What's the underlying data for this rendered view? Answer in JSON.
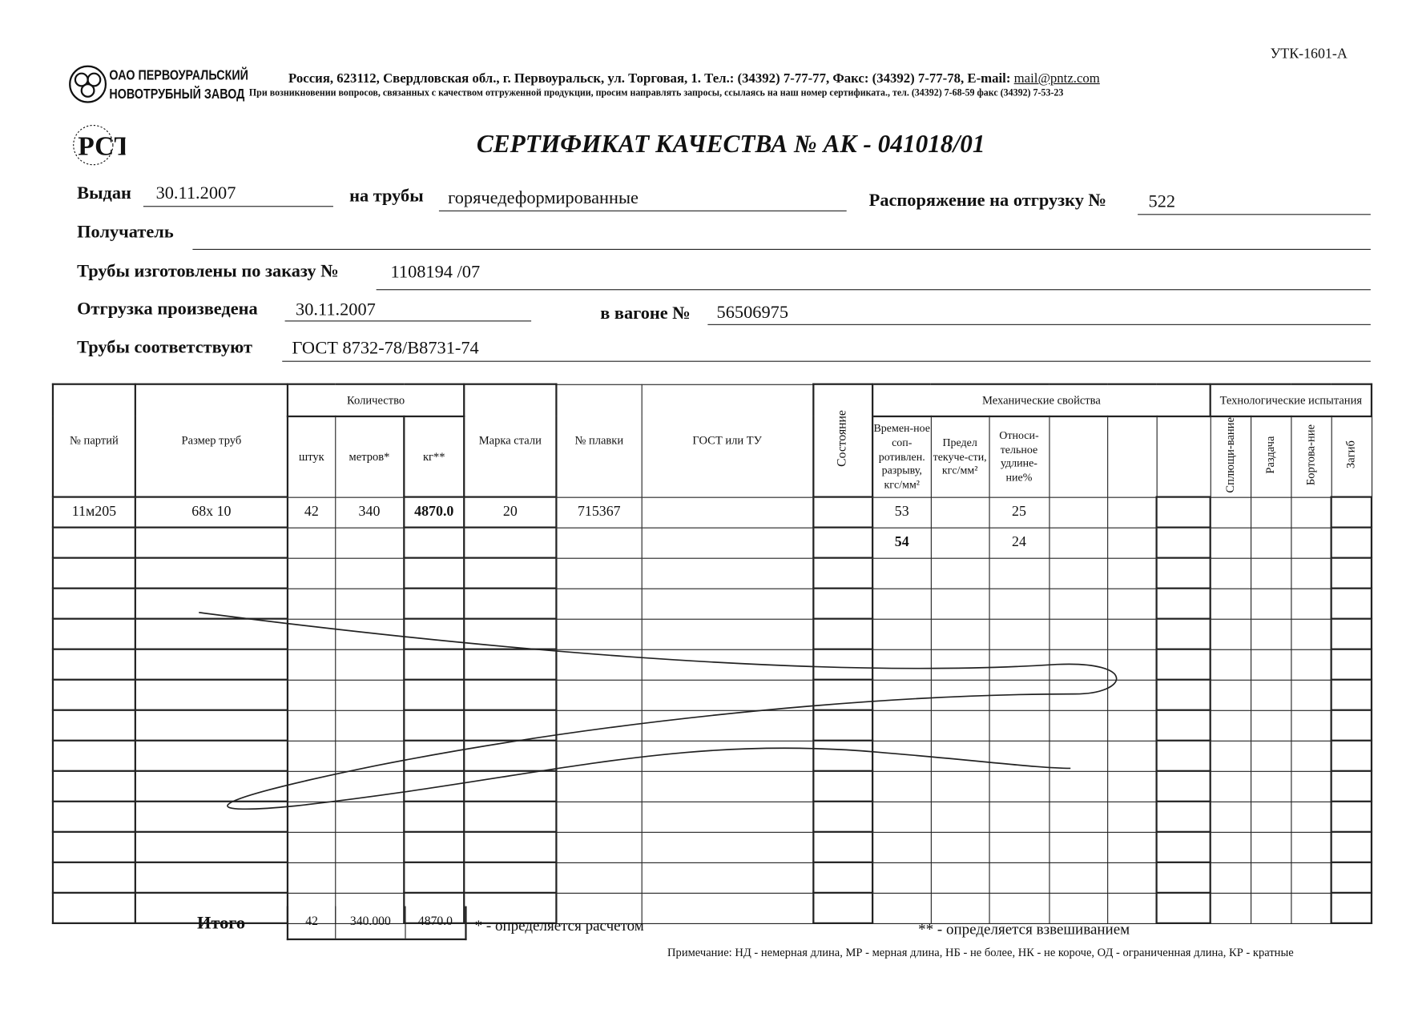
{
  "form_code": "УТК-1601-А",
  "company": {
    "line1": "ОАО ПЕРВОУРАЛЬСКИЙ",
    "line2": "НОВОТРУБНЫЙ ЗАВОД",
    "address": "Россия, 623112, Свердловская обл., г. Первоуральск, ул. Торговая, 1. Тел.: (34392) 7-77-77, Факс: (34392) 7-77-78,  E-mail: ",
    "email": "mail@pntz.com",
    "notice": "При возникновении вопросов, связанных с качеством отгруженной продукции, просим направлять запросы, ссылаясь на наш номер сертификата., тел. (34392) 7-68-59 факс (34392) 7-53-23"
  },
  "title": "СЕРТИФИКАТ КАЧЕСТВА   №  АК -  041018/01",
  "fields": {
    "issued_label": "Выдан",
    "issued": "30.11.2007",
    "pipes_label": "на трубы",
    "pipes": "горячедеформированные",
    "order_label": "Распоряжение на отгрузку №",
    "order": "522",
    "recipient_label": "Получатель",
    "recipient": "",
    "made_label": "Трубы изготовлены по заказу №",
    "made": "1108194  /07",
    "shipped_label": "Отгрузка произведена",
    "shipped": "30.11.2007",
    "wagon_label": "в вагоне №",
    "wagon": "56506975",
    "conform_label": "Трубы соответствуют",
    "conform": "ГОСТ 8732-78/В8731-74"
  },
  "table": {
    "h_batch": "№ партий",
    "h_size": "Размер труб",
    "h_qty": "Количество",
    "h_pcs": "штук",
    "h_m": "метров*",
    "h_kg": "кг**",
    "h_steel": "Марка стали",
    "h_melt": "№ плавки",
    "h_gost": "ГОСТ или ТУ",
    "h_state": "Состояние",
    "h_mech": "Механические свойства",
    "h_tensile": "Времен-ное соп-ротивлен. разрыву, кгс/мм²",
    "h_yield": "Предел текуче-сти, кгс/мм²",
    "h_elong": "Относи-тельное удлине-ние%",
    "h_tech": "Технологические испытания",
    "h_flat": "Сплющи-вание",
    "h_expand": "Раздача",
    "h_flange": "Бортова-ние",
    "h_bend": "Загиб",
    "rows": [
      {
        "batch": "11м205",
        "size": "68x 10",
        "pcs": "42",
        "m": "340",
        "kg": "4870.0",
        "steel": "20",
        "melt": "715367",
        "tensile": "53",
        "elong": "25"
      },
      {
        "batch": "",
        "size": "",
        "pcs": "",
        "m": "",
        "kg": "",
        "steel": "",
        "melt": "",
        "tensile": "54",
        "elong": "24"
      }
    ],
    "total_label": "Итого",
    "total_pcs": "42",
    "total_m": "340.000",
    "total_kg": "4870.0"
  },
  "footnote1": "* - определяется расчетом",
  "footnote2": "** - определяется взвешиванием",
  "note": "Примечание: НД - немерная длина, МР - мерная длина, НБ - не более, НК - не короче, ОД - ограниченная длина, КР - кратные"
}
